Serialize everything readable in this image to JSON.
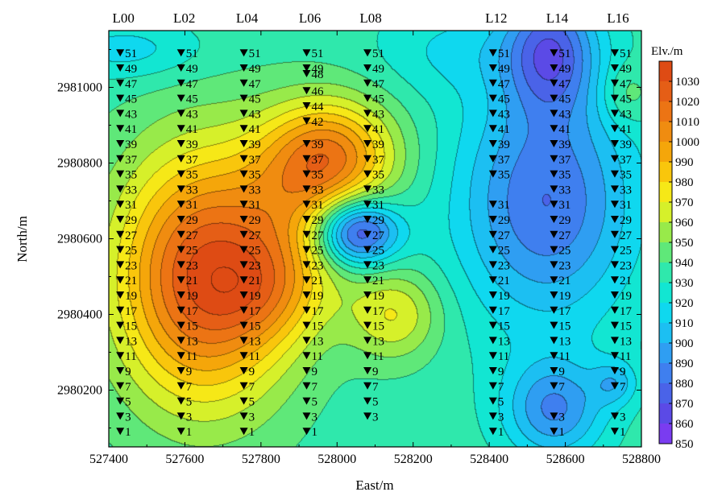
{
  "chart_data": {
    "type": "heatmap",
    "subtype": "filled contour map with station markers",
    "xlabel": "East/m",
    "ylabel": "North/m",
    "xlim": [
      527400,
      528800
    ],
    "ylim": [
      2980050,
      2981150
    ],
    "x_ticks": [
      527400,
      527600,
      527800,
      528000,
      528200,
      528400,
      528600,
      528800
    ],
    "y_ticks": [
      2980200,
      2980400,
      2980600,
      2980800,
      2981000
    ],
    "x_tick_labels": [
      "527400",
      "527600",
      "527800",
      "528000",
      "528200",
      "528400",
      "528600",
      "528800"
    ],
    "y_tick_labels": [
      "2980200",
      "2980400",
      "2980600",
      "2980800",
      "2981000"
    ],
    "colorbar": {
      "title": "Elv./m",
      "range": [
        850,
        1040
      ],
      "ticks": [
        850,
        860,
        870,
        880,
        890,
        900,
        910,
        920,
        930,
        940,
        950,
        960,
        970,
        980,
        990,
        1000,
        1010,
        1020,
        1030
      ],
      "tick_labels": [
        "850",
        "860",
        "870",
        "880",
        "890",
        "900",
        "910",
        "920",
        "930",
        "940",
        "950",
        "960",
        "970",
        "980",
        "990",
        "1000",
        "1010",
        "1020",
        "1030"
      ],
      "colors": [
        "#7a3cf0",
        "#5b4ae6",
        "#4a63e8",
        "#3f7fef",
        "#2f9ef2",
        "#1cbff2",
        "#0fd8ef",
        "#12e6d2",
        "#2fe8ac",
        "#5fe879",
        "#98ea4a",
        "#d6f02a",
        "#f6e817",
        "#f9c60c",
        "#f5a60a",
        "#f08c10",
        "#ec7414",
        "#e55e16",
        "#de4b14"
      ]
    },
    "survey_lines": [
      {
        "name": "L00",
        "x": 527430,
        "stations": [
          "51",
          "49",
          "47",
          "45",
          "43",
          "41",
          "39",
          "37",
          "35",
          "33",
          "31",
          "29",
          "27",
          "25",
          "23",
          "21",
          "19",
          "17",
          "15",
          "13",
          "11",
          "9",
          "7",
          "5",
          "3",
          "1"
        ]
      },
      {
        "name": "L02",
        "x": 527590,
        "stations": [
          "51",
          "49",
          "47",
          "45",
          "43",
          "41",
          "39",
          "37",
          "35",
          "33",
          "31",
          "29",
          "27",
          "25",
          "23",
          "21",
          "19",
          "17",
          "15",
          "13",
          "11",
          "9",
          "7",
          "5",
          "3",
          "1"
        ]
      },
      {
        "name": "L04",
        "x": 527755,
        "stations": [
          "51",
          "49",
          "47",
          "45",
          "43",
          "41",
          "39",
          "37",
          "35",
          "33",
          "31",
          "29",
          "27",
          "25",
          "23",
          "21",
          "19",
          "17",
          "15",
          "13",
          "11",
          "9",
          "7",
          "5",
          "3",
          "1"
        ]
      },
      {
        "name": "L06",
        "x": 527920,
        "stations": [
          "51",
          "49",
          "48",
          "46",
          "44",
          "42",
          "39",
          "37",
          "35",
          "33",
          "31",
          "29",
          "27",
          "25",
          "23",
          "21",
          "19",
          "17",
          "15",
          "13",
          "11",
          "9",
          "7",
          "5",
          "3",
          "1"
        ]
      },
      {
        "name": "L08",
        "x": 528080,
        "stations": [
          "51",
          "49",
          "47",
          "45",
          "43",
          "41",
          "39",
          "37",
          "35",
          "33",
          "31",
          "29",
          "27",
          "25",
          "23",
          "21",
          "19",
          "17",
          "15",
          "13",
          "11",
          "9",
          "7",
          "5",
          "3"
        ]
      },
      {
        "name": "L12",
        "x": 528410,
        "stations": [
          "51",
          "49",
          "47",
          "45",
          "43",
          "41",
          "39",
          "37",
          "35",
          "31",
          "29",
          "27",
          "25",
          "23",
          "21",
          "19",
          "17",
          "15",
          "13",
          "11",
          "9",
          "7",
          "5",
          "3",
          "1"
        ]
      },
      {
        "name": "L14",
        "x": 528570,
        "stations": [
          "51",
          "49",
          "47",
          "45",
          "43",
          "41",
          "39",
          "37",
          "35",
          "33",
          "31",
          "29",
          "27",
          "25",
          "23",
          "21",
          "19",
          "17",
          "15",
          "13",
          "11",
          "9",
          "7",
          "3",
          "1"
        ]
      },
      {
        "name": "L16",
        "x": 528730,
        "stations": [
          "51",
          "49",
          "47",
          "45",
          "43",
          "41",
          "39",
          "37",
          "35",
          "33",
          "31",
          "29",
          "27",
          "25",
          "23",
          "21",
          "19",
          "17",
          "15",
          "13",
          "11",
          "9",
          "7",
          "3",
          "1"
        ]
      }
    ],
    "station_y": {
      "51": 2981090,
      "49": 2981050,
      "48": 2981035,
      "47": 2981010,
      "46": 2980990,
      "45": 2980970,
      "44": 2980950,
      "43": 2980930,
      "42": 2980910,
      "41": 2980890,
      "39": 2980850,
      "37": 2980810,
      "35": 2980770,
      "33": 2980730,
      "31": 2980690,
      "29": 2980650,
      "27": 2980610,
      "25": 2980570,
      "23": 2980530,
      "21": 2980490,
      "19": 2980450,
      "17": 2980410,
      "15": 2980370,
      "13": 2980330,
      "11": 2980290,
      "9": 2980250,
      "7": 2980210,
      "5": 2980170,
      "3": 2980130,
      "1": 2980090
    },
    "elevation_field": {
      "base": 935,
      "terms": [
        {
          "x": 527650,
          "y": 2980500,
          "sx": 230,
          "sy": 330,
          "a": 95
        },
        {
          "x": 527820,
          "y": 2980460,
          "sx": 150,
          "sy": 140,
          "a": 25
        },
        {
          "x": 527980,
          "y": 2980820,
          "sx": 170,
          "sy": 150,
          "a": 70
        },
        {
          "x": 527900,
          "y": 2980650,
          "sx": 170,
          "sy": 200,
          "a": 25
        },
        {
          "x": 528150,
          "y": 2980400,
          "sx": 120,
          "sy": 120,
          "a": 35
        },
        {
          "x": 528050,
          "y": 2980620,
          "sx": 110,
          "sy": 90,
          "a": -80
        },
        {
          "x": 528550,
          "y": 2980700,
          "sx": 230,
          "sy": 320,
          "a": -55
        },
        {
          "x": 528560,
          "y": 2981100,
          "sx": 120,
          "sy": 160,
          "a": -55
        },
        {
          "x": 528570,
          "y": 2980150,
          "sx": 130,
          "sy": 130,
          "a": -45
        },
        {
          "x": 528730,
          "y": 2980220,
          "sx": 60,
          "sy": 60,
          "a": -25
        },
        {
          "x": 528760,
          "y": 2980980,
          "sx": 70,
          "sy": 80,
          "a": 18
        },
        {
          "x": 528300,
          "y": 2981100,
          "sx": 200,
          "sy": 120,
          "a": -15
        },
        {
          "x": 527450,
          "y": 2981100,
          "sx": 200,
          "sy": 80,
          "a": -20
        }
      ]
    }
  }
}
